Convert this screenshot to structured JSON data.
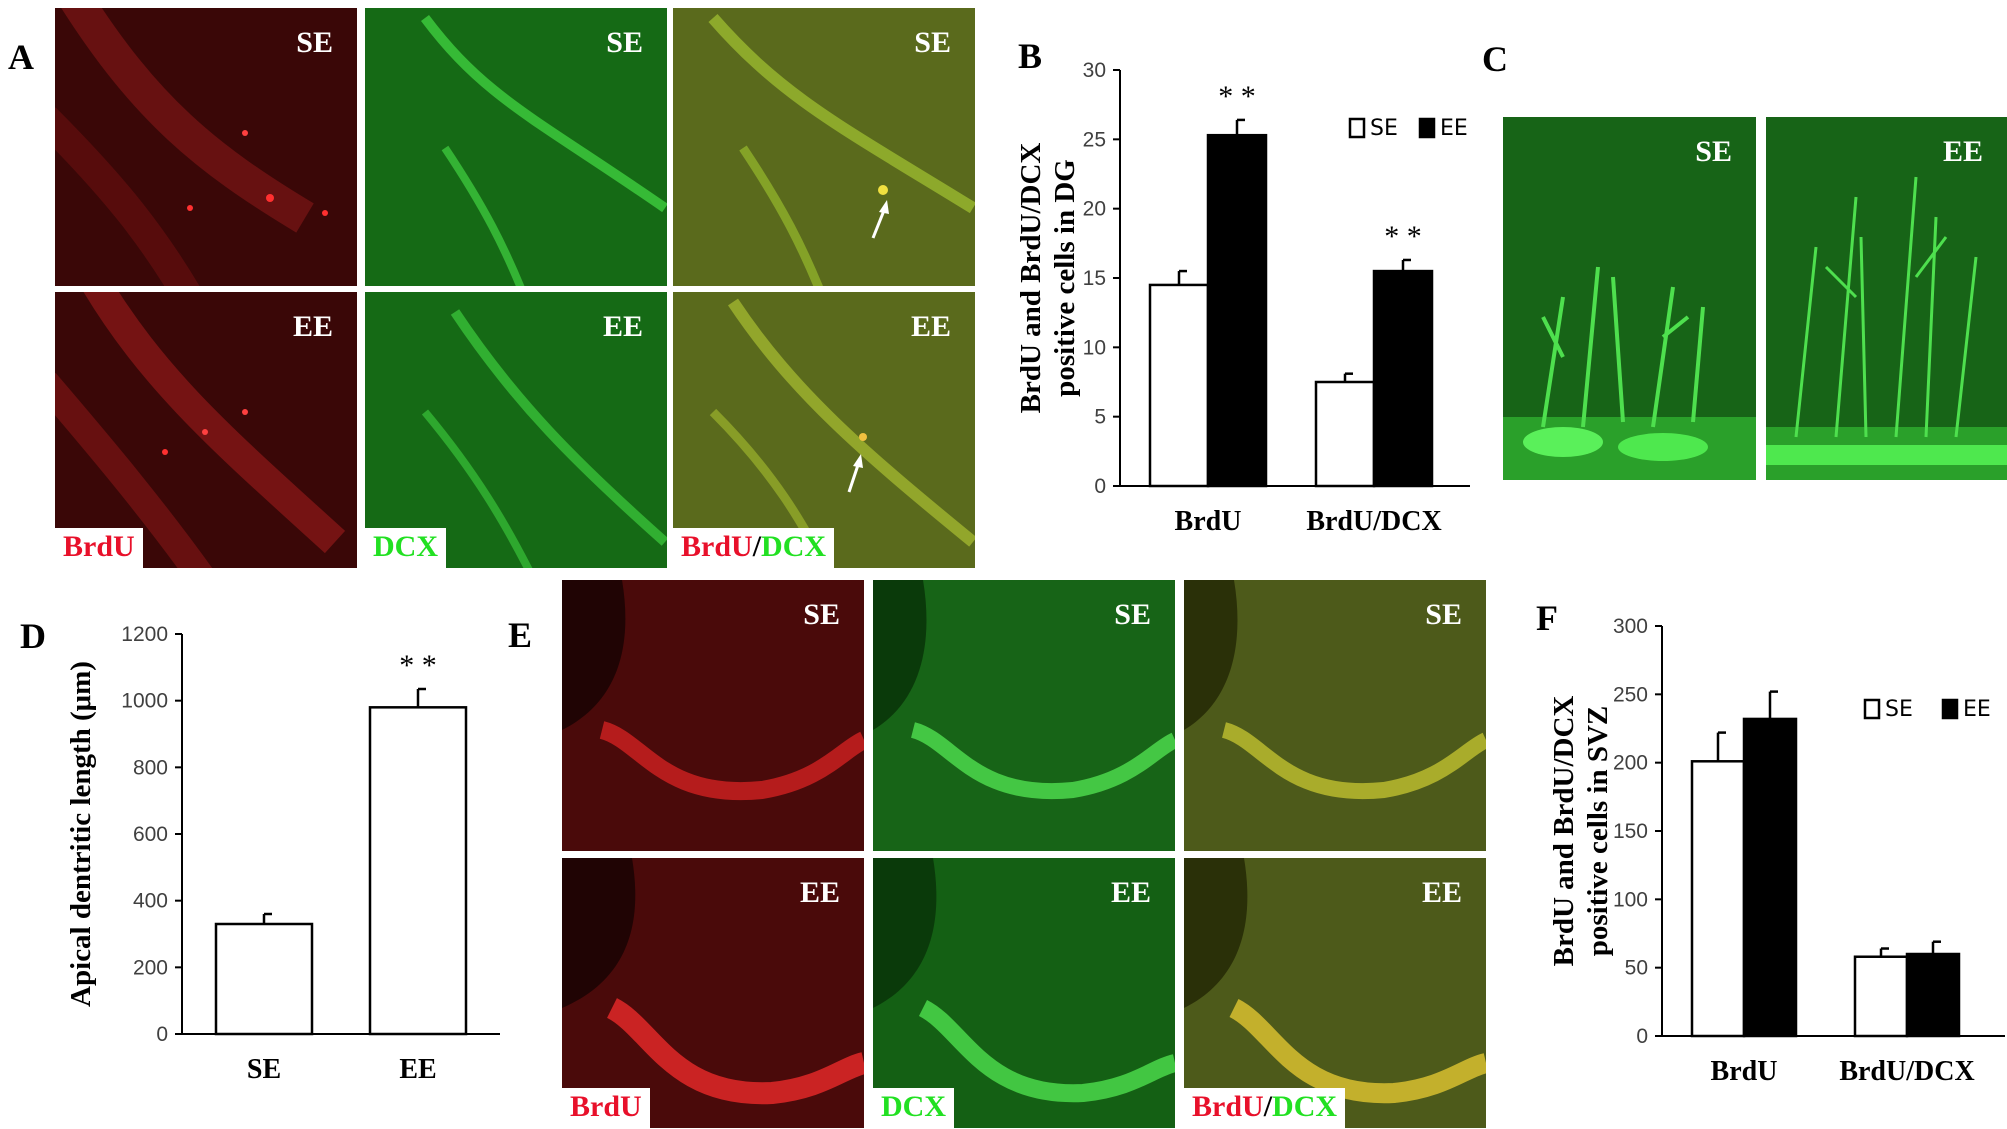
{
  "panels": {
    "A": {
      "label": "A",
      "tags": {
        "brdu": "BrdU",
        "dcx": "DCX",
        "slash": "/"
      }
    },
    "C": {
      "label": "C"
    },
    "E": {
      "label": "E"
    }
  },
  "conditions": {
    "se": "SE",
    "ee": "EE"
  },
  "colors": {
    "bar_se": "#ffffff",
    "bar_ee": "#000000",
    "brdu_text": "#e8102a",
    "dcx_text": "#22e022",
    "red_stain": "#7a1010",
    "green_stain": "#1f8a1f"
  },
  "chart_data": [
    {
      "panel": "B",
      "type": "bar",
      "ylabel": [
        "BrdU and BrdU/DCX",
        "positive cells in DG"
      ],
      "categories": [
        "BrdU",
        "BrdU/DCX"
      ],
      "ylim": [
        0,
        30
      ],
      "yticks": [
        0,
        5,
        10,
        15,
        20,
        25,
        30
      ],
      "legend": [
        "SE",
        "EE"
      ],
      "legend_position": "top-right",
      "series": [
        {
          "name": "SE",
          "values": [
            14.5,
            7.5
          ],
          "errors": [
            1.0,
            0.6
          ]
        },
        {
          "name": "EE",
          "values": [
            25.3,
            15.5
          ],
          "errors": [
            1.1,
            0.8
          ]
        }
      ],
      "annotations": [
        "* *",
        "* *"
      ]
    },
    {
      "panel": "D",
      "type": "bar",
      "ylabel": [
        "Apical dentritic length (μm)"
      ],
      "categories": [
        "SE",
        "EE"
      ],
      "ylim": [
        0,
        1200
      ],
      "yticks": [
        0,
        200,
        400,
        600,
        800,
        1000,
        1200
      ],
      "series": [
        {
          "name": "",
          "values": [
            330,
            980
          ],
          "errors": [
            30,
            55
          ]
        }
      ],
      "annotations": [
        "",
        "* *"
      ]
    },
    {
      "panel": "F",
      "type": "bar",
      "ylabel": [
        "BrdU and BrdU/DCX",
        "positive cells in SVZ"
      ],
      "categories": [
        "BrdU",
        "BrdU/DCX"
      ],
      "ylim": [
        0,
        300
      ],
      "yticks": [
        0,
        50,
        100,
        150,
        200,
        250,
        300
      ],
      "legend": [
        "SE",
        "EE"
      ],
      "legend_position": "top-right",
      "series": [
        {
          "name": "SE",
          "values": [
            201,
            58
          ],
          "errors": [
            21,
            6
          ]
        },
        {
          "name": "EE",
          "values": [
            232,
            60
          ],
          "errors": [
            20,
            9
          ]
        }
      ],
      "annotations": [
        "",
        ""
      ]
    }
  ]
}
